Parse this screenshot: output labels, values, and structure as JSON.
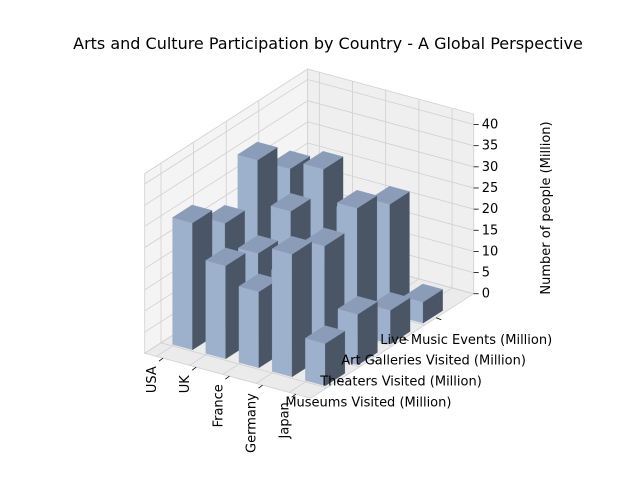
{
  "chart_data": {
    "type": "bar3d",
    "title": "Arts and Culture Participation by Country - A Global Perspective",
    "xlabel": "",
    "ylabel": "",
    "zlabel": "Number of people (Million)",
    "categories": [
      "USA",
      "UK",
      "France",
      "Germany",
      "Japan"
    ],
    "series": [
      {
        "name": "Museums Visited (Million)",
        "values": [
          30,
          22,
          18,
          29,
          10
        ]
      },
      {
        "name": "Theaters Visited (Million)",
        "values": [
          25,
          20,
          17,
          26,
          12
        ]
      },
      {
        "name": "Art Galleries Visited (Million)",
        "values": [
          35,
          25,
          15,
          30,
          8
        ]
      },
      {
        "name": "Live Music Events (Million)",
        "values": [
          28,
          30,
          22,
          26,
          5
        ]
      }
    ],
    "zlim": [
      0,
      40
    ],
    "zticks": [
      0,
      5,
      10,
      15,
      20,
      25,
      30,
      35,
      40
    ],
    "grid": true,
    "colors": {
      "bar_face": "#9db1cc",
      "bar_side": "#4a5566",
      "bar_top": "#8a9cb8",
      "pane": "#f2f2f2",
      "grid": "#d0d0d0"
    }
  }
}
